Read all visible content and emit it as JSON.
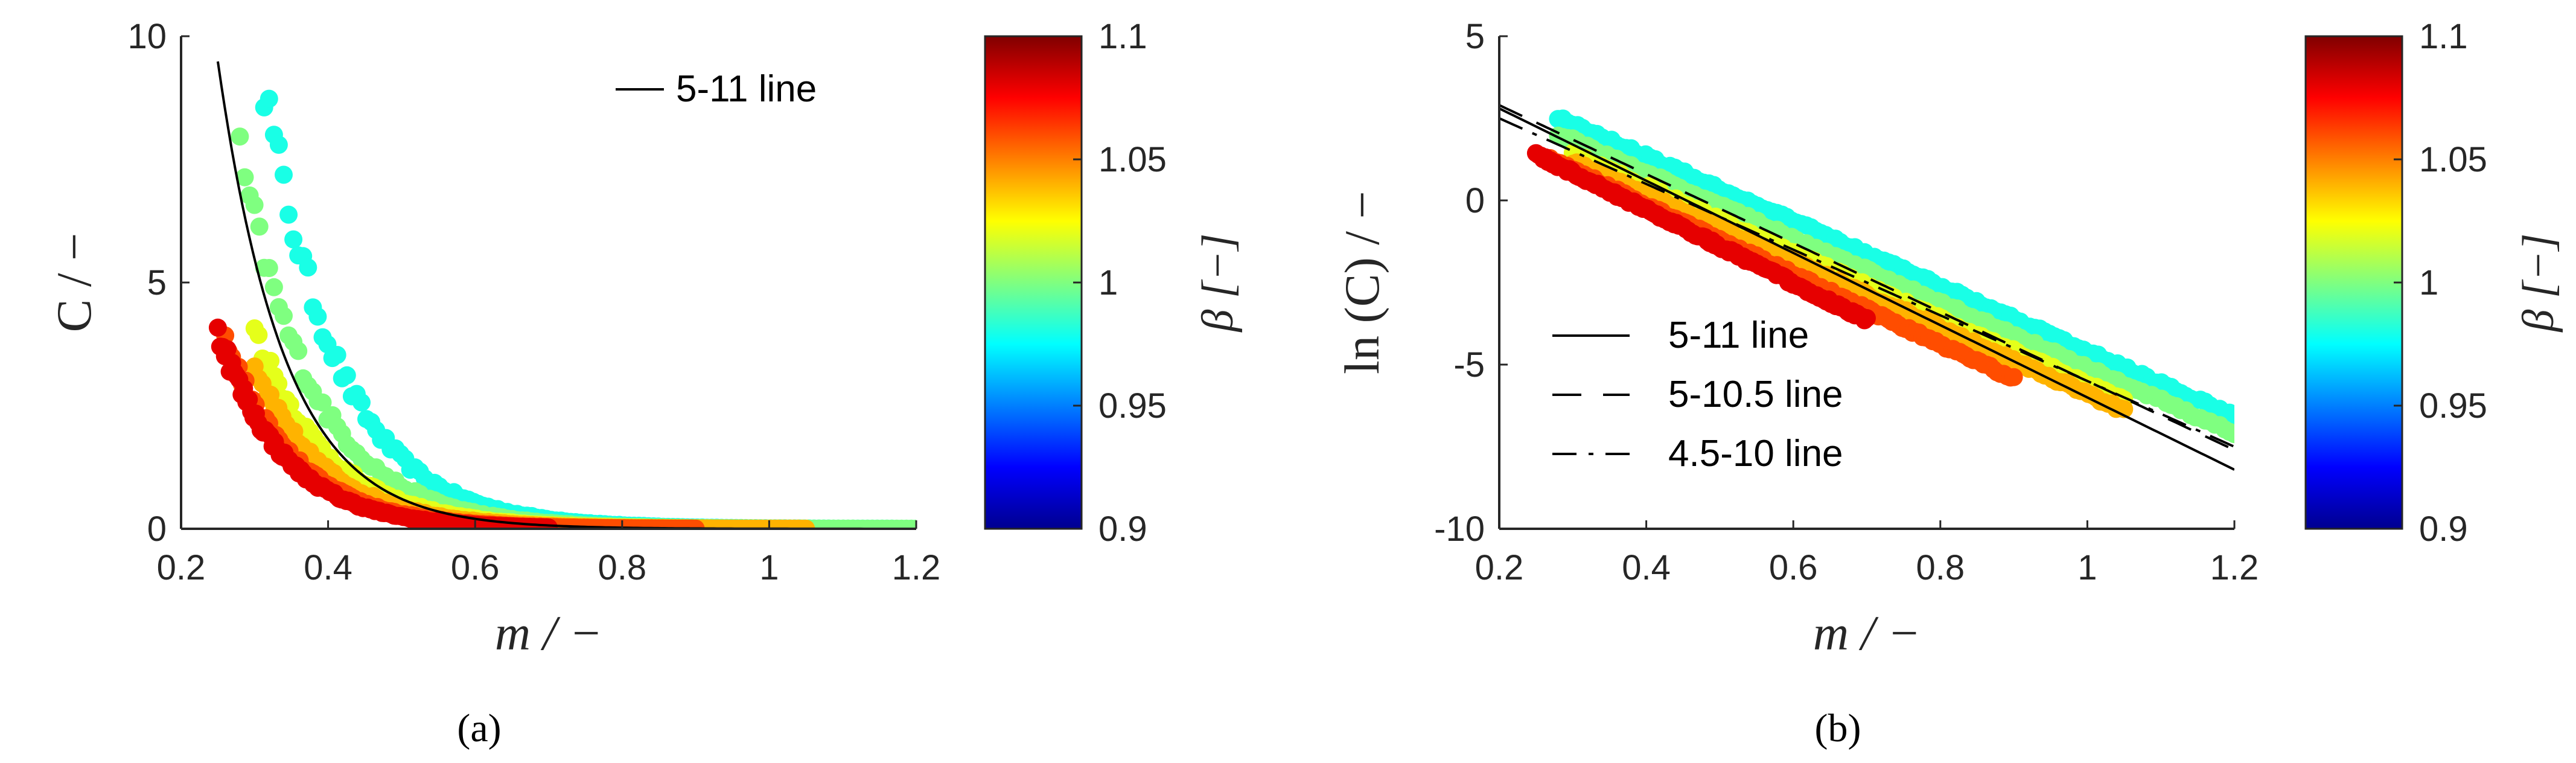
{
  "chart_data": [
    {
      "type": "scatter",
      "panel_label": "(a)",
      "xlabel": "m / −",
      "ylabel": "C / −",
      "xlim": [
        0.2,
        1.2
      ],
      "ylim": [
        0,
        10
      ],
      "x_ticks": [
        "0.2",
        "0.4",
        "0.6",
        "0.8",
        "1",
        "1.2"
      ],
      "x_tick_values": [
        0.2,
        0.4,
        0.6,
        0.8,
        1.0,
        1.2
      ],
      "y_ticks": [
        "0",
        "5",
        "10"
      ],
      "y_tick_values": [
        0,
        5,
        10
      ],
      "legend_position": "top-right",
      "legend": [
        {
          "label": "5-11 line",
          "style": "solid"
        }
      ],
      "lines": [
        {
          "name": "5-11 line",
          "style": "solid",
          "ln_intercept": 5,
          "ln_slope": -11
        }
      ],
      "scatter_color_by": "β",
      "scatter_bands": [
        {
          "beta": 0.98,
          "x_min": 0.28,
          "x_max": 1.2,
          "ln_intercept": 5.3,
          "ln_slope": -9.9
        },
        {
          "beta": 1.0,
          "x_min": 0.28,
          "x_max": 1.2,
          "ln_intercept": 4.8,
          "ln_slope": -9.9
        },
        {
          "beta": 1.02,
          "x_min": 0.3,
          "x_max": 1.05,
          "ln_intercept": 4.4,
          "ln_slope": -10.0
        },
        {
          "beta": 1.04,
          "x_min": 0.3,
          "x_max": 1.05,
          "ln_intercept": 4.2,
          "ln_slope": -10.1
        },
        {
          "beta": 1.06,
          "x_min": 0.26,
          "x_max": 0.9,
          "ln_intercept": 4.1,
          "ln_slope": -10.6
        },
        {
          "beta": 1.08,
          "x_min": 0.25,
          "x_max": 0.7,
          "ln_intercept": 4.2,
          "ln_slope": -11.2
        }
      ],
      "colorbar": {
        "label": "β [−]",
        "min": 0.9,
        "max": 1.1,
        "ticks": [
          "0.9",
          "0.95",
          "1",
          "1.05",
          "1.1"
        ],
        "tick_values": [
          0.9,
          0.95,
          1.0,
          1.05,
          1.1
        ],
        "colormap": "jet"
      }
    },
    {
      "type": "scatter",
      "panel_label": "(b)",
      "xlabel": "m / −",
      "ylabel": "ln (C) / −",
      "xlim": [
        0.2,
        1.2
      ],
      "ylim": [
        -10,
        5
      ],
      "x_ticks": [
        "0.2",
        "0.4",
        "0.6",
        "0.8",
        "1",
        "1.2"
      ],
      "x_tick_values": [
        0.2,
        0.4,
        0.6,
        0.8,
        1.0,
        1.2
      ],
      "y_ticks": [
        "-10",
        "-5",
        "0",
        "5"
      ],
      "y_tick_values": [
        -10,
        -5,
        0,
        5
      ],
      "legend_position": "bottom-left",
      "legend": [
        {
          "label": "5-11 line",
          "style": "solid"
        },
        {
          "label": "5-10.5 line",
          "style": "dashed"
        },
        {
          "label": "4.5-10 line",
          "style": "dashdot"
        }
      ],
      "lines": [
        {
          "name": "5-11 line",
          "style": "solid",
          "ln_intercept": 5,
          "ln_slope": -11
        },
        {
          "name": "5-10.5 line",
          "style": "dashed",
          "ln_intercept": 5,
          "ln_slope": -10.5
        },
        {
          "name": "4.5-10 line",
          "style": "dashdot",
          "ln_intercept": 4.5,
          "ln_slope": -10
        }
      ],
      "scatter_color_by": "β",
      "scatter_bands": [
        {
          "beta": 0.98,
          "x_min": 0.28,
          "x_max": 1.2,
          "ln_intercept": 5.3,
          "ln_slope": -9.9
        },
        {
          "beta": 1.0,
          "x_min": 0.28,
          "x_max": 1.2,
          "ln_intercept": 4.8,
          "ln_slope": -9.9
        },
        {
          "beta": 1.02,
          "x_min": 0.3,
          "x_max": 1.05,
          "ln_intercept": 4.4,
          "ln_slope": -10.0
        },
        {
          "beta": 1.04,
          "x_min": 0.3,
          "x_max": 1.05,
          "ln_intercept": 4.2,
          "ln_slope": -10.1
        },
        {
          "beta": 1.06,
          "x_min": 0.26,
          "x_max": 0.9,
          "ln_intercept": 4.1,
          "ln_slope": -10.6
        },
        {
          "beta": 1.08,
          "x_min": 0.25,
          "x_max": 0.7,
          "ln_intercept": 4.2,
          "ln_slope": -11.2
        }
      ],
      "colorbar": {
        "label": "β [−]",
        "min": 0.9,
        "max": 1.1,
        "ticks": [
          "0.9",
          "0.95",
          "1",
          "1.05",
          "1.1"
        ],
        "tick_values": [
          0.9,
          0.95,
          1.0,
          1.05,
          1.1
        ],
        "colormap": "jet"
      }
    }
  ]
}
